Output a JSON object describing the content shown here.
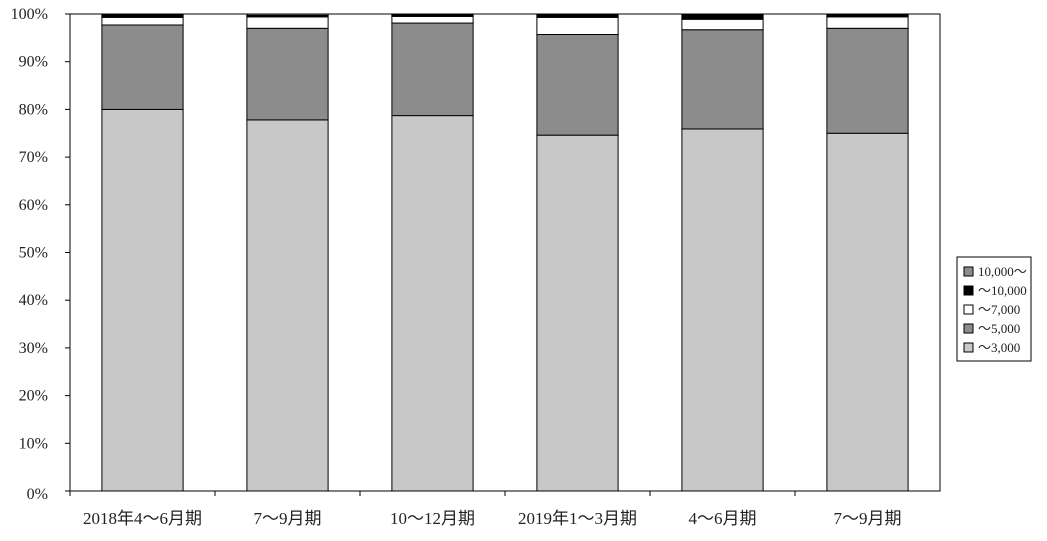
{
  "chart_data": {
    "type": "bar",
    "stacked": true,
    "orientation": "vertical",
    "categories": [
      "2018年4～6月期",
      "7～9月期",
      "10～12月期",
      "2019年1～3月期",
      "4～6月期",
      "7～9月期"
    ],
    "series": [
      {
        "name": "～3,000",
        "color": "#c8c8c8",
        "values": [
          80.0,
          77.8,
          78.7,
          74.6,
          75.9,
          75.0
        ]
      },
      {
        "name": "～5,000",
        "color": "#8c8c8c",
        "values": [
          17.7,
          19.2,
          19.4,
          21.1,
          20.8,
          22.0
        ]
      },
      {
        "name": "～7,000",
        "color": "#ffffff",
        "values": [
          1.6,
          2.4,
          1.4,
          3.6,
          2.2,
          2.4
        ]
      },
      {
        "name": "～10,000",
        "color": "#000000",
        "values": [
          0.5,
          0.3,
          0.3,
          0.5,
          0.9,
          0.4
        ]
      },
      {
        "name": "10,000～",
        "color": "#8c8c8c",
        "values": [
          0.2,
          0.3,
          0.2,
          0.2,
          0.2,
          0.2
        ]
      }
    ],
    "legend_order": [
      "10,000～",
      "～10,000",
      "～7,000",
      "～5,000",
      "～3,000"
    ],
    "y_ticks": [
      "0%",
      "10%",
      "20%",
      "30%",
      "40%",
      "50%",
      "60%",
      "70%",
      "80%",
      "90%",
      "100%"
    ],
    "ylim": [
      0,
      100
    ],
    "y_unit": "%",
    "title": "",
    "xlabel": "",
    "ylabel": "",
    "grid": false,
    "legend_position": "right"
  }
}
